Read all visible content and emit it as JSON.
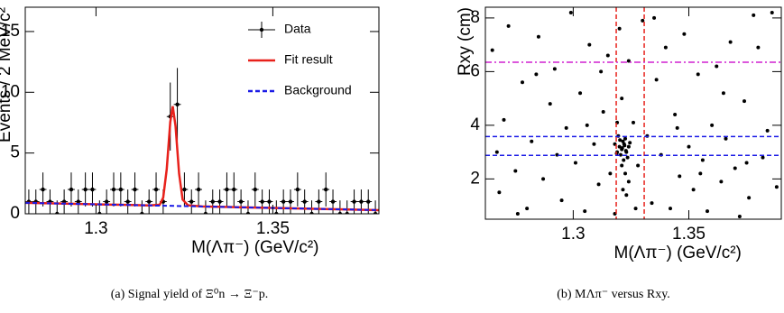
{
  "chart_data": [
    {
      "type": "errorbar",
      "caption": "(a) Signal yield of Ξ⁰n → Ξ⁻p.",
      "x_label": "M(Λπ⁻) (GeV/c²)",
      "y_label": "Events / 2 MeV/c²",
      "xlim": [
        1.28,
        1.38
      ],
      "ylim": [
        0,
        17
      ],
      "xticks": [
        1.3,
        1.35
      ],
      "yticks": [
        0,
        5,
        10,
        15
      ],
      "legend": "upper right",
      "series": [
        {
          "name": "Data",
          "color": "#000000",
          "style": "points",
          "x": [
            1.281,
            1.283,
            1.285,
            1.287,
            1.289,
            1.291,
            1.293,
            1.295,
            1.297,
            1.299,
            1.301,
            1.303,
            1.305,
            1.307,
            1.309,
            1.311,
            1.313,
            1.315,
            1.317,
            1.319,
            1.321,
            1.323,
            1.325,
            1.327,
            1.329,
            1.331,
            1.333,
            1.335,
            1.337,
            1.339,
            1.341,
            1.343,
            1.345,
            1.347,
            1.349,
            1.351,
            1.353,
            1.355,
            1.357,
            1.359,
            1.361,
            1.363,
            1.365,
            1.367,
            1.369,
            1.371,
            1.373,
            1.375,
            1.377,
            1.379
          ],
          "values": [
            1,
            1,
            2,
            1,
            0,
            1,
            2,
            1,
            2,
            2,
            0,
            1,
            2,
            2,
            1,
            2,
            0,
            1,
            2,
            1,
            8,
            9,
            2,
            1,
            2,
            0,
            1,
            1,
            2,
            2,
            1,
            0,
            2,
            1,
            1,
            0,
            1,
            1,
            2,
            1,
            0,
            1,
            2,
            1,
            0,
            0,
            1,
            1,
            1,
            0
          ],
          "errors": [
            1,
            1,
            1.4,
            1,
            1.1,
            1,
            1.4,
            1,
            1.4,
            1.4,
            1.1,
            1,
            1.4,
            1.4,
            1,
            1.4,
            1.1,
            1,
            1.4,
            1,
            2.8,
            3,
            1.4,
            1,
            1.4,
            1.1,
            1,
            1,
            1.4,
            1.4,
            1,
            1.1,
            1.4,
            1,
            1,
            1.1,
            1,
            1,
            1.4,
            1,
            1.1,
            1,
            1.4,
            1,
            1.1,
            1.1,
            1,
            1,
            1,
            1.1
          ]
        },
        {
          "name": "Fit result",
          "color": "#e8211b",
          "style": "line",
          "x": [
            1.28,
            1.29,
            1.3,
            1.31,
            1.315,
            1.318,
            1.319,
            1.32,
            1.321,
            1.3217,
            1.3225,
            1.3235,
            1.3245,
            1.326,
            1.33,
            1.34,
            1.35,
            1.36,
            1.37,
            1.38
          ],
          "values": [
            0.9,
            0.84,
            0.78,
            0.72,
            0.69,
            0.74,
            1.32,
            3.66,
            7.55,
            8.85,
            7.2,
            3.3,
            1.17,
            0.7,
            0.6,
            0.54,
            0.48,
            0.42,
            0.36,
            0.3
          ]
        },
        {
          "name": "Background",
          "color": "#1a1ae6",
          "style": "dashed",
          "x": [
            1.28,
            1.38
          ],
          "values": [
            0.9,
            0.3
          ]
        }
      ]
    },
    {
      "type": "scatter",
      "caption": "(b) MΛπ⁻ versus Rxy.",
      "x_label": "M(Λπ⁻) (GeV/c²)",
      "y_label": "Rxy (cm)",
      "xlim": [
        1.262,
        1.39
      ],
      "ylim": [
        0.5,
        8.4
      ],
      "xticks": [
        1.3,
        1.35
      ],
      "yticks": [
        2,
        4,
        6,
        8
      ],
      "series": [
        {
          "color": "#000000",
          "x": [
            1.265,
            1.27,
            1.268,
            1.272,
            1.275,
            1.278,
            1.28,
            1.282,
            1.285,
            1.287,
            1.29,
            1.292,
            1.295,
            1.297,
            1.299,
            1.301,
            1.303,
            1.305,
            1.307,
            1.309,
            1.311,
            1.313,
            1.315,
            1.316,
            1.318,
            1.32,
            1.321,
            1.323,
            1.324,
            1.326,
            1.328,
            1.33,
            1.332,
            1.334,
            1.336,
            1.338,
            1.34,
            1.342,
            1.344,
            1.346,
            1.348,
            1.35,
            1.352,
            1.354,
            1.356,
            1.358,
            1.36,
            1.362,
            1.364,
            1.366,
            1.368,
            1.37,
            1.372,
            1.374,
            1.376,
            1.378,
            1.38,
            1.382,
            1.384,
            1.386,
            1.388,
            1.267,
            1.276,
            1.284,
            1.293,
            1.306,
            1.312,
            1.327,
            1.335,
            1.345,
            1.355,
            1.365,
            1.375,
            1.319,
            1.32,
            1.321,
            1.322,
            1.323,
            1.3215,
            1.3205,
            1.3225,
            1.324,
            1.318,
            1.3195,
            1.3235,
            1.3212,
            1.3228,
            1.3218,
            1.3202,
            1.3245,
            1.3188,
            1.3222,
            1.321,
            1.3225,
            1.319,
            1.324,
            1.3215
          ],
          "values": [
            6.8,
            4.2,
            1.5,
            7.7,
            2.3,
            5.6,
            0.9,
            3.4,
            7.3,
            2.0,
            4.8,
            6.1,
            1.2,
            3.9,
            8.2,
            2.6,
            5.2,
            0.8,
            7.0,
            3.3,
            1.8,
            4.5,
            6.6,
            2.2,
            0.7,
            7.6,
            5.0,
            1.4,
            6.4,
            4.1,
            2.5,
            7.9,
            3.6,
            1.1,
            5.7,
            2.9,
            6.9,
            0.9,
            4.4,
            2.1,
            7.4,
            3.2,
            1.6,
            5.9,
            2.7,
            0.8,
            4.0,
            6.2,
            1.9,
            3.5,
            7.1,
            2.4,
            0.6,
            4.9,
            1.3,
            8.1,
            6.9,
            2.8,
            3.8,
            8.2,
            1.7,
            3.0,
            0.7,
            5.9,
            2.9,
            4.0,
            6.0,
            0.9,
            8.0,
            3.9,
            2.2,
            5.2,
            2.6,
            3.0,
            3.2,
            3.1,
            3.3,
            3.0,
            3.4,
            2.9,
            3.5,
            3.2,
            3.3,
            3.6,
            2.8,
            3.15,
            3.05,
            2.7,
            3.45,
            3.35,
            2.95,
            3.25,
            2.5,
            2.2,
            4.1,
            1.9,
            1.6
          ]
        }
      ],
      "lines": [
        {
          "orient": "vertical",
          "value": 1.3186,
          "color": "#e8211b",
          "style": "dashed"
        },
        {
          "orient": "vertical",
          "value": 1.3307,
          "color": "#e8211b",
          "style": "dashed"
        },
        {
          "orient": "horizontal",
          "value": 6.35,
          "color": "#d020d0",
          "style": "dashdot"
        },
        {
          "orient": "horizontal",
          "value": 3.58,
          "color": "#1a1ae6",
          "style": "dashed"
        },
        {
          "orient": "horizontal",
          "value": 2.88,
          "color": "#1a1ae6",
          "style": "dashed"
        }
      ]
    }
  ]
}
